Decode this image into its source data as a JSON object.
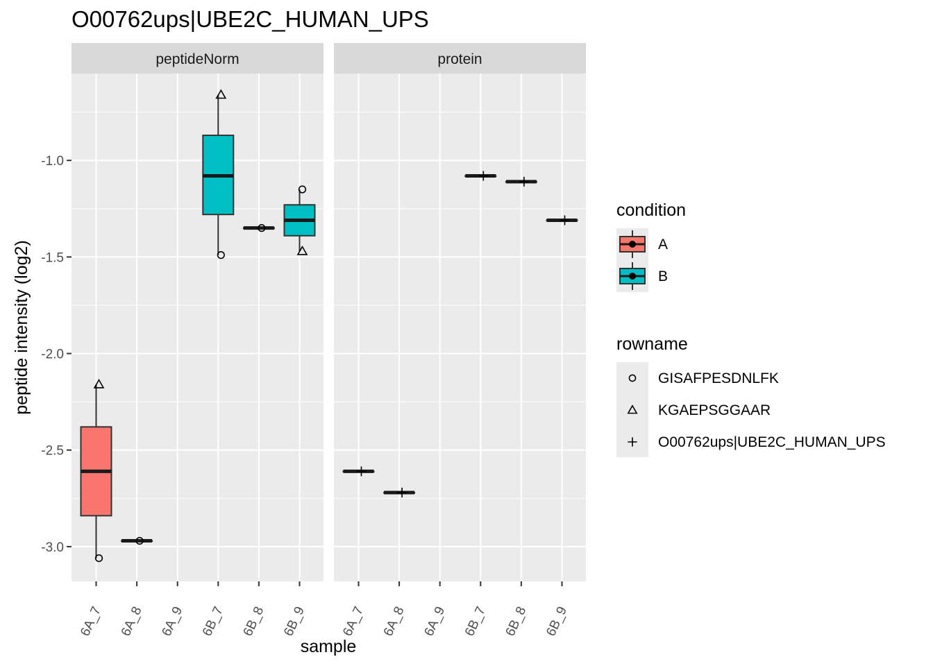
{
  "chart_data": {
    "type": "box",
    "title": "O00762ups|UBE2C_HUMAN_UPS",
    "xlabel": "sample",
    "ylabel": "peptide intensity (log2)",
    "ylim": [
      -3.18,
      -0.55
    ],
    "y_ticks": [
      {
        "value": -1.0,
        "label": "-1.0"
      },
      {
        "value": -1.5,
        "label": "-1.5"
      },
      {
        "value": -2.0,
        "label": "-2.0"
      },
      {
        "value": -2.5,
        "label": "-2.5"
      },
      {
        "value": -3.0,
        "label": "-3.0"
      }
    ],
    "categories": [
      "6A_7",
      "6A_8",
      "6A_9",
      "6B_7",
      "6B_8",
      "6B_9"
    ],
    "grid": true,
    "legend_position": "right",
    "colors": {
      "A": "#F8766D",
      "B": "#00BFC4"
    },
    "panels": [
      {
        "name": "peptideNorm",
        "boxes": [
          {
            "sample": "6A_7",
            "condition": "A",
            "lower": -3.06,
            "q1": -2.84,
            "median": -2.61,
            "q3": -2.38,
            "upper": -2.16
          },
          {
            "sample": "6A_8",
            "condition": "A",
            "lower": -2.97,
            "q1": -2.97,
            "median": -2.97,
            "q3": -2.97,
            "upper": -2.97
          },
          {
            "sample": "6B_7",
            "condition": "B",
            "lower": -1.49,
            "q1": -1.28,
            "median": -1.08,
            "q3": -0.87,
            "upper": -0.66
          },
          {
            "sample": "6B_8",
            "condition": "B",
            "lower": -1.35,
            "q1": -1.35,
            "median": -1.35,
            "q3": -1.35,
            "upper": -1.35
          },
          {
            "sample": "6B_9",
            "condition": "B",
            "lower": -1.47,
            "q1": -1.39,
            "median": -1.31,
            "q3": -1.23,
            "upper": -1.15
          }
        ],
        "points": [
          {
            "sample": "6A_7",
            "rowname": "GISAFPESDNLFK",
            "value": -3.06
          },
          {
            "sample": "6A_7",
            "rowname": "KGAEPSGGAAR",
            "value": -2.16
          },
          {
            "sample": "6A_8",
            "rowname": "GISAFPESDNLFK",
            "value": -2.97
          },
          {
            "sample": "6B_7",
            "rowname": "GISAFPESDNLFK",
            "value": -1.49
          },
          {
            "sample": "6B_7",
            "rowname": "KGAEPSGGAAR",
            "value": -0.66
          },
          {
            "sample": "6B_8",
            "rowname": "GISAFPESDNLFK",
            "value": -1.35
          },
          {
            "sample": "6B_9",
            "rowname": "GISAFPESDNLFK",
            "value": -1.15
          },
          {
            "sample": "6B_9",
            "rowname": "KGAEPSGGAAR",
            "value": -1.47
          }
        ]
      },
      {
        "name": "protein",
        "boxes": [
          {
            "sample": "6A_7",
            "condition": "A",
            "lower": -2.61,
            "q1": -2.61,
            "median": -2.61,
            "q3": -2.61,
            "upper": -2.61
          },
          {
            "sample": "6A_8",
            "condition": "A",
            "lower": -2.72,
            "q1": -2.72,
            "median": -2.72,
            "q3": -2.72,
            "upper": -2.72
          },
          {
            "sample": "6B_7",
            "condition": "B",
            "lower": -1.08,
            "q1": -1.08,
            "median": -1.08,
            "q3": -1.08,
            "upper": -1.08
          },
          {
            "sample": "6B_8",
            "condition": "B",
            "lower": -1.11,
            "q1": -1.11,
            "median": -1.11,
            "q3": -1.11,
            "upper": -1.11
          },
          {
            "sample": "6B_9",
            "condition": "B",
            "lower": -1.31,
            "q1": -1.31,
            "median": -1.31,
            "q3": -1.31,
            "upper": -1.31
          }
        ],
        "points": [
          {
            "sample": "6A_7",
            "rowname": "O00762ups|UBE2C_HUMAN_UPS",
            "value": -2.61
          },
          {
            "sample": "6A_8",
            "rowname": "O00762ups|UBE2C_HUMAN_UPS",
            "value": -2.72
          },
          {
            "sample": "6B_7",
            "rowname": "O00762ups|UBE2C_HUMAN_UPS",
            "value": -1.08
          },
          {
            "sample": "6B_8",
            "rowname": "O00762ups|UBE2C_HUMAN_UPS",
            "value": -1.11
          },
          {
            "sample": "6B_9",
            "rowname": "O00762ups|UBE2C_HUMAN_UPS",
            "value": -1.31
          }
        ]
      }
    ],
    "legends": [
      {
        "title": "condition",
        "items": [
          {
            "label": "A",
            "color": "#F8766D"
          },
          {
            "label": "B",
            "color": "#00BFC4"
          }
        ]
      },
      {
        "title": "rowname",
        "items": [
          {
            "label": "GISAFPESDNLFK",
            "shape": "circle"
          },
          {
            "label": "KGAEPSGGAAR",
            "shape": "triangle"
          },
          {
            "label": "O00762ups|UBE2C_HUMAN_UPS",
            "shape": "plus"
          }
        ]
      }
    ]
  }
}
